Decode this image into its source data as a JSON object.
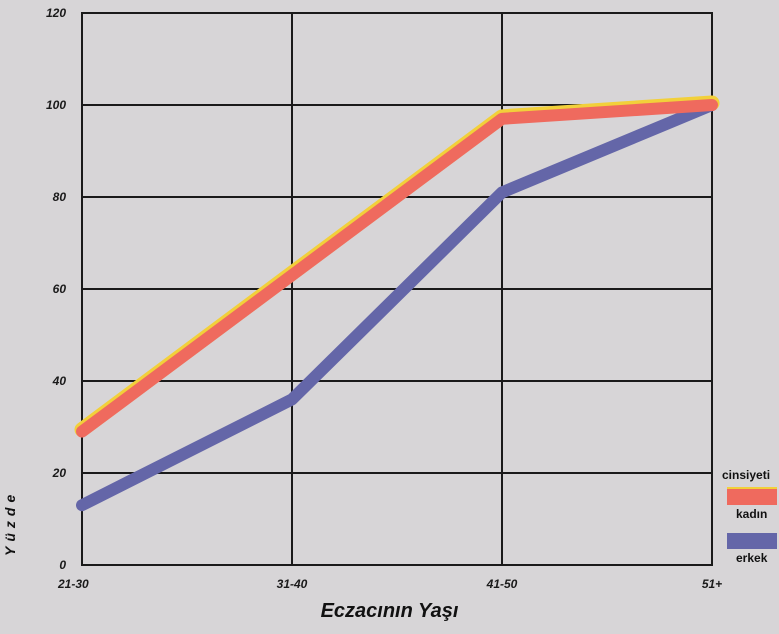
{
  "chart_data": {
    "type": "line",
    "categories": [
      "21-30",
      "31-40",
      "41-50",
      "51+"
    ],
    "series": [
      {
        "name": "kadın",
        "values": [
          29,
          63,
          97,
          100
        ],
        "color": "#ef6a5e",
        "edge_color": "#f2d03a"
      },
      {
        "name": "erkek",
        "values": [
          13,
          36,
          81,
          100
        ],
        "color": "#6466a8"
      }
    ],
    "ylim": [
      0,
      120
    ],
    "yticks": [
      0,
      20,
      40,
      60,
      80,
      100,
      120
    ],
    "xlabel": "Eczacının Yaşı",
    "ylabel": "Yüzde",
    "legend_title": "cinsiyeti",
    "legend_position": "bottom-right",
    "grid": true,
    "colors": {
      "background": "#d7d5d7",
      "grid": "#1a1a1a"
    }
  }
}
